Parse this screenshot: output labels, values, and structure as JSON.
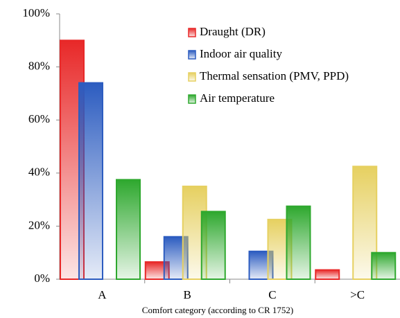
{
  "chart_data": {
    "type": "bar",
    "x_label": "Comfort category (according to CR 1752)",
    "categories": [
      "A",
      "B",
      "C",
      ">C"
    ],
    "series": [
      {
        "name": "Draught (DR)",
        "color": "#e82828",
        "values": [
          90,
          6.5,
          null,
          3.5
        ]
      },
      {
        "name": "Indoor air quality",
        "color": "#2c5cc0",
        "values": [
          74,
          16,
          10.5,
          null
        ]
      },
      {
        "name": "Thermal sensation (PMV, PPD)",
        "color": "#e6d060",
        "values": [
          null,
          35,
          22.5,
          42.5
        ]
      },
      {
        "name": "Air temperature",
        "color": "#2ea82e",
        "values": [
          37.5,
          25.5,
          27.5,
          10
        ]
      }
    ],
    "ylim": [
      0,
      100
    ],
    "yticks": [
      {
        "value": 0,
        "label": "0%"
      },
      {
        "value": 20,
        "label": "20%"
      },
      {
        "value": 40,
        "label": "40%"
      },
      {
        "value": 60,
        "label": "60%"
      },
      {
        "value": 80,
        "label": "80%"
      },
      {
        "value": 100,
        "label": "100%"
      }
    ],
    "grid": false,
    "legend": "upper-right"
  }
}
